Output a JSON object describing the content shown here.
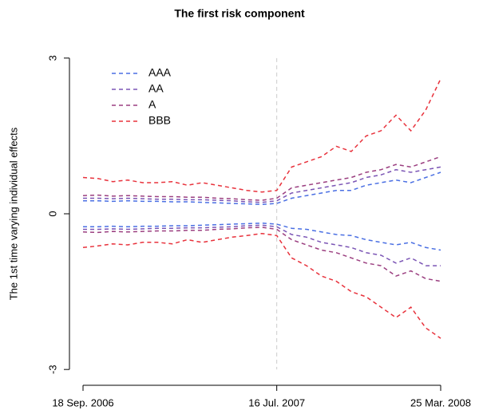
{
  "chart_data": {
    "type": "line",
    "title": "The first risk component",
    "y_label": "The 1st time varying individual effects",
    "categories": [
      "18 Sep. 2006",
      null,
      null,
      null,
      null,
      null,
      null,
      null,
      null,
      null,
      null,
      null,
      null,
      "16 Jul. 2007",
      null,
      null,
      null,
      null,
      null,
      null,
      null,
      null,
      null,
      null,
      "25 Mar. 2008"
    ],
    "ylim": [
      -3.32,
      3.32
    ],
    "yticks": [
      -3,
      0,
      3
    ],
    "legend": "top-left",
    "series": [
      {
        "name": "AAA",
        "color": "#4a6fe3",
        "lines": [
          [
            0.25,
            0.25,
            0.24,
            0.25,
            0.24,
            0.24,
            0.23,
            0.23,
            0.22,
            0.21,
            0.2,
            0.19,
            0.18,
            0.2,
            0.3,
            0.35,
            0.4,
            0.45,
            0.45,
            0.55,
            0.6,
            0.65,
            0.6,
            0.7,
            0.8
          ],
          [
            -0.25,
            -0.25,
            -0.24,
            -0.25,
            -0.24,
            -0.24,
            -0.23,
            -0.23,
            -0.22,
            -0.21,
            -0.2,
            -0.19,
            -0.18,
            -0.2,
            -0.28,
            -0.3,
            -0.35,
            -0.4,
            -0.42,
            -0.5,
            -0.55,
            -0.6,
            -0.55,
            -0.65,
            -0.7
          ]
        ]
      },
      {
        "name": "AA",
        "color": "#7b55b5",
        "lines": [
          [
            0.3,
            0.3,
            0.29,
            0.3,
            0.29,
            0.28,
            0.28,
            0.27,
            0.27,
            0.26,
            0.25,
            0.23,
            0.22,
            0.25,
            0.4,
            0.45,
            0.5,
            0.55,
            0.6,
            0.7,
            0.75,
            0.85,
            0.8,
            0.85,
            0.9
          ],
          [
            -0.3,
            -0.3,
            -0.29,
            -0.3,
            -0.29,
            -0.28,
            -0.28,
            -0.27,
            -0.27,
            -0.26,
            -0.25,
            -0.23,
            -0.22,
            -0.25,
            -0.4,
            -0.45,
            -0.55,
            -0.6,
            -0.65,
            -0.75,
            -0.8,
            -0.95,
            -0.85,
            -1.0,
            -1.0
          ]
        ]
      },
      {
        "name": "A",
        "color": "#9b3f80",
        "lines": [
          [
            0.35,
            0.36,
            0.34,
            0.35,
            0.34,
            0.33,
            0.33,
            0.32,
            0.32,
            0.3,
            0.29,
            0.27,
            0.26,
            0.3,
            0.5,
            0.55,
            0.6,
            0.65,
            0.7,
            0.8,
            0.85,
            0.95,
            0.9,
            1.0,
            1.1
          ],
          [
            -0.35,
            -0.36,
            -0.34,
            -0.35,
            -0.34,
            -0.33,
            -0.33,
            -0.32,
            -0.32,
            -0.3,
            -0.29,
            -0.27,
            -0.26,
            -0.3,
            -0.5,
            -0.6,
            -0.7,
            -0.75,
            -0.85,
            -0.95,
            -1.0,
            -1.2,
            -1.1,
            -1.25,
            -1.3
          ]
        ]
      },
      {
        "name": "BBB",
        "color": "#e8323c",
        "lines": [
          [
            0.7,
            0.68,
            0.62,
            0.65,
            0.6,
            0.6,
            0.62,
            0.55,
            0.6,
            0.55,
            0.5,
            0.45,
            0.42,
            0.45,
            0.9,
            1.0,
            1.1,
            1.3,
            1.2,
            1.5,
            1.6,
            1.9,
            1.6,
            2.0,
            2.6
          ],
          [
            -0.65,
            -0.62,
            -0.58,
            -0.6,
            -0.55,
            -0.55,
            -0.58,
            -0.5,
            -0.55,
            -0.5,
            -0.45,
            -0.42,
            -0.38,
            -0.42,
            -0.85,
            -1.0,
            -1.2,
            -1.3,
            -1.5,
            -1.6,
            -1.8,
            -2.0,
            -1.8,
            -2.2,
            -2.4
          ]
        ]
      }
    ]
  }
}
